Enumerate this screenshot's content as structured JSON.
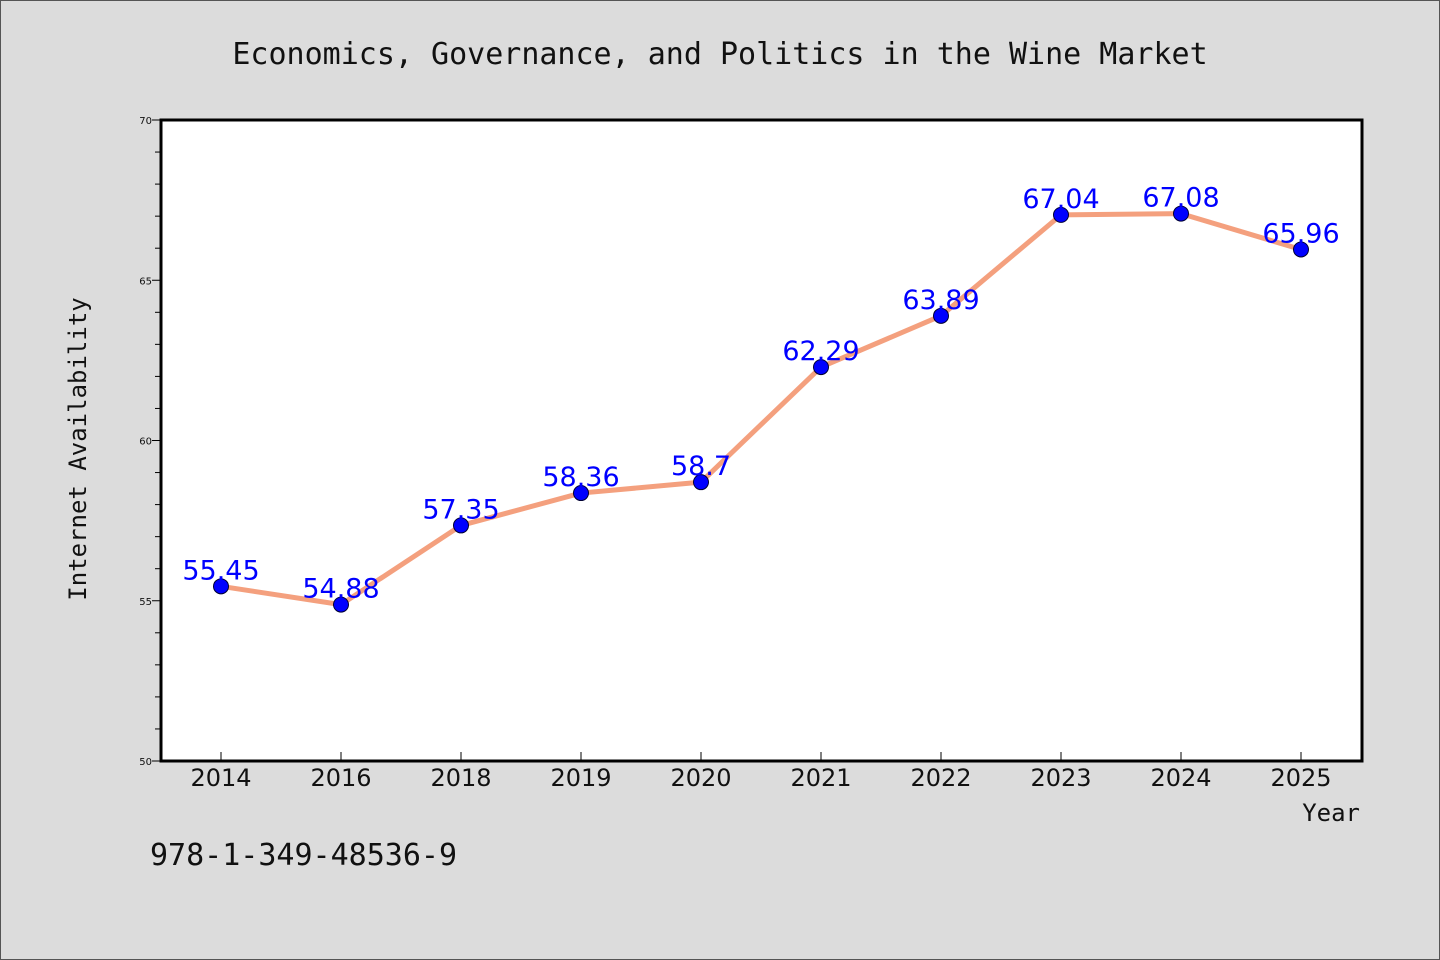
{
  "chart_data": {
    "type": "line",
    "title": "Economics, Governance, and Politics in the Wine Market",
    "xlabel": "Year",
    "ylabel": "Internet Availability",
    "categories": [
      "2014",
      "2016",
      "2018",
      "2019",
      "2020",
      "2021",
      "2022",
      "2023",
      "2024",
      "2025"
    ],
    "series": [
      {
        "values": [
          55.45,
          54.88,
          57.35,
          58.36,
          58.7,
          62.29,
          63.89,
          67.04,
          67.08,
          65.96
        ],
        "data_labels": [
          "55.45",
          "54.88",
          "57.35",
          "58.36",
          "58.7",
          "62.29",
          "63.89",
          "67.04",
          "67.08",
          "65.96"
        ],
        "line_color": "#f4a07e",
        "marker_color": "#0000ff"
      }
    ],
    "ylim": [
      50,
      70
    ],
    "yticks": [
      "50",
      "55",
      "60",
      "65",
      "70"
    ],
    "grid": false,
    "label_color": "#0000ff"
  },
  "footnote": "978-1-349-48536-9"
}
